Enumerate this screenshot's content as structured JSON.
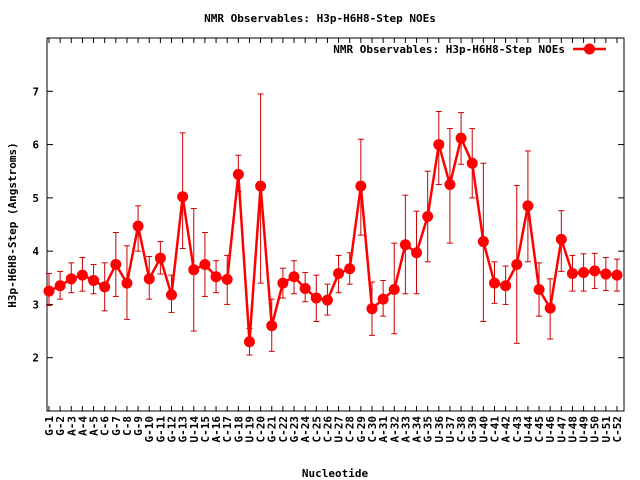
{
  "chart_data": {
    "type": "line",
    "title": "NMR Observables: H3p-H6H8-Step NOEs",
    "xlabel": "Nucleotide",
    "ylabel": "H3p-H6H8-Step (Angstroms)",
    "ylim": [
      1,
      8
    ],
    "yticks": [
      2,
      3,
      4,
      5,
      6,
      7
    ],
    "grid": false,
    "legend_position": "top-right",
    "colors": {
      "series": "#ff0000",
      "errorbar": "#cc0000",
      "axis": "#000000"
    },
    "categories": [
      "G-1",
      "G-2",
      "A-3",
      "A-4",
      "A-5",
      "C-6",
      "G-7",
      "C-8",
      "G-9",
      "G-10",
      "G-11",
      "G-12",
      "G-13",
      "U-14",
      "C-15",
      "A-16",
      "C-17",
      "G-18",
      "U-19",
      "C-20",
      "G-21",
      "C-22",
      "G-23",
      "A-24",
      "C-25",
      "C-26",
      "U-27",
      "C-28",
      "G-29",
      "C-30",
      "A-31",
      "A-32",
      "A-33",
      "A-34",
      "G-35",
      "U-36",
      "U-37",
      "C-38",
      "G-39",
      "U-40",
      "C-41",
      "A-42",
      "C-43",
      "U-44",
      "C-45",
      "U-46",
      "U-47",
      "U-48",
      "U-49",
      "U-50",
      "U-51",
      "C-52"
    ],
    "series": [
      {
        "name": "NMR Observables: H3p-H6H8-Step NOEs",
        "values": [
          3.25,
          3.35,
          3.48,
          3.55,
          3.45,
          3.33,
          3.75,
          3.4,
          4.47,
          3.48,
          3.87,
          3.18,
          5.02,
          3.65,
          3.75,
          3.52,
          3.47,
          5.44,
          2.3,
          5.22,
          2.6,
          3.4,
          3.52,
          3.3,
          3.12,
          3.08,
          3.58,
          3.67,
          5.22,
          2.92,
          3.1,
          3.28,
          4.12,
          3.97,
          4.65,
          6.0,
          5.25,
          6.12,
          5.65,
          4.18,
          3.4,
          3.35,
          3.75,
          4.85,
          3.28,
          2.93,
          4.22,
          3.58,
          3.6,
          3.63,
          3.57,
          3.55
        ],
        "error_low": [
          2.98,
          3.1,
          3.22,
          3.25,
          3.2,
          2.88,
          3.15,
          2.72,
          4.0,
          3.1,
          3.57,
          2.85,
          4.05,
          2.5,
          3.15,
          3.22,
          3.0,
          5.12,
          2.05,
          3.4,
          2.12,
          3.12,
          3.2,
          3.05,
          2.68,
          2.8,
          3.22,
          3.38,
          4.3,
          2.42,
          2.78,
          2.45,
          3.2,
          3.2,
          3.8,
          5.25,
          4.15,
          5.63,
          5.0,
          2.68,
          3.02,
          3.0,
          2.27,
          3.8,
          2.78,
          2.35,
          3.62,
          3.25,
          3.25,
          3.3,
          3.26,
          3.25
        ],
        "error_high": [
          3.58,
          3.62,
          3.78,
          3.88,
          3.75,
          3.78,
          4.35,
          4.1,
          4.85,
          3.9,
          4.18,
          3.55,
          6.22,
          4.8,
          4.35,
          3.82,
          3.92,
          5.8,
          2.55,
          6.95,
          3.1,
          3.68,
          3.82,
          3.6,
          3.55,
          3.38,
          3.92,
          3.97,
          6.1,
          3.42,
          3.45,
          4.15,
          5.05,
          4.75,
          5.5,
          6.62,
          6.3,
          6.6,
          6.3,
          5.65,
          3.8,
          3.72,
          5.23,
          5.88,
          3.78,
          3.48,
          4.76,
          3.92,
          3.95,
          3.96,
          3.88,
          3.85
        ]
      }
    ]
  }
}
